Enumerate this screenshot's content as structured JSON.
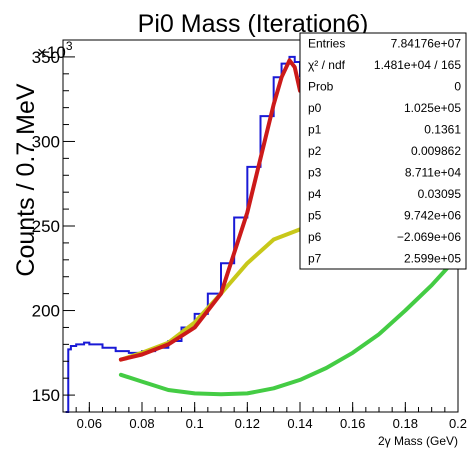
{
  "chart_data": {
    "type": "histogram-with-fits",
    "title": "Pi0 Mass (Iteration6)",
    "xlabel": "2γ Mass (GeV)",
    "ylabel": "Counts / 0.7 MeV",
    "y_multiplier": "×10",
    "y_multiplier_exponent": "3",
    "xlim": [
      0.05,
      0.2
    ],
    "ylim": [
      140,
      360
    ],
    "x_ticks": [
      0.06,
      0.08,
      0.1,
      0.12,
      0.14,
      0.16,
      0.18,
      0.2
    ],
    "x_tick_labels": [
      "0.06",
      "0.08",
      "0.1",
      "0.12",
      "0.14",
      "0.16",
      "0.18",
      "0.2"
    ],
    "y_ticks": [
      150,
      200,
      250,
      300,
      350
    ],
    "y_tick_labels": [
      "150",
      "200",
      "250",
      "300",
      "350"
    ],
    "histogram": {
      "color": "#1a1ad6",
      "x": [
        0.051,
        0.052,
        0.053,
        0.055,
        0.058,
        0.06,
        0.065,
        0.07,
        0.075,
        0.08,
        0.085,
        0.09,
        0.095,
        0.1,
        0.105,
        0.11,
        0.115,
        0.12,
        0.125,
        0.13,
        0.133,
        0.136,
        0.138,
        0.14
      ],
      "y": [
        140,
        177,
        179,
        180,
        181,
        180,
        178,
        176,
        175,
        176,
        178,
        182,
        190,
        198,
        210,
        228,
        255,
        285,
        315,
        338,
        346,
        350,
        347,
        338
      ]
    },
    "fit_total": {
      "color": "#cc1a1a",
      "x": [
        0.072,
        0.08,
        0.09,
        0.1,
        0.11,
        0.12,
        0.125,
        0.13,
        0.133,
        0.136,
        0.138,
        0.14
      ],
      "y": [
        171,
        174,
        180,
        190,
        210,
        258,
        290,
        322,
        338,
        348,
        344,
        330
      ]
    },
    "fit_background": {
      "color": "#c8c81a",
      "x": [
        0.072,
        0.08,
        0.09,
        0.1,
        0.11,
        0.12,
        0.13,
        0.14,
        0.15,
        0.16,
        0.17,
        0.18,
        0.19,
        0.2
      ],
      "y": [
        171,
        175,
        181,
        193,
        210,
        228,
        242,
        248,
        247,
        242,
        237,
        234,
        237,
        248
      ]
    },
    "fit_green": {
      "color": "#44cc44",
      "x": [
        0.072,
        0.08,
        0.09,
        0.1,
        0.11,
        0.12,
        0.13,
        0.14,
        0.15,
        0.16,
        0.17,
        0.18,
        0.19,
        0.2
      ],
      "y": [
        162,
        158,
        153,
        151,
        150.5,
        151,
        154,
        159,
        166,
        175,
        186,
        200,
        215,
        232
      ]
    },
    "stats_box": {
      "rows": [
        {
          "label": "Entries",
          "value": "7.84176e+07"
        },
        {
          "label": "χ² / ndf",
          "value": "1.481e+04 / 165"
        },
        {
          "label": "Prob",
          "value": "0"
        },
        {
          "label": "p0",
          "value": "1.025e+05"
        },
        {
          "label": "p1",
          "value": "0.1361"
        },
        {
          "label": "p2",
          "value": "0.009862"
        },
        {
          "label": "p3",
          "value": "8.711e+04"
        },
        {
          "label": "p4",
          "value": "0.03095"
        },
        {
          "label": "p5",
          "value": "9.742e+06"
        },
        {
          "label": "p6",
          "value": "−2.069e+06"
        },
        {
          "label": "p7",
          "value": "2.599e+05"
        }
      ]
    }
  }
}
